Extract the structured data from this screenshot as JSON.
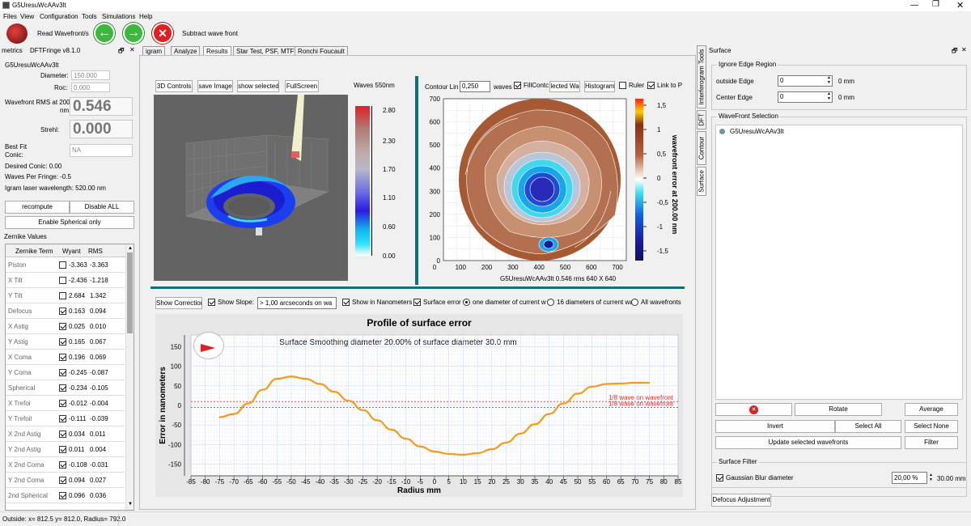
{
  "window": {
    "title": "G5UresuWcAAv3lt"
  },
  "menu": [
    "Files",
    "View",
    "Configuration",
    "Tools",
    "Simulations",
    "Help"
  ],
  "toolbar": {
    "read_label": "Read Wavefront/s",
    "subtract_label": "Subtract wave front"
  },
  "left_panel": {
    "dock_title": "metrics",
    "dock_subtitle": "DFTFringe v8.1.0",
    "file_name": "G5UresuWcAAv3lt",
    "diameter_label": "Diameter:",
    "diameter_value": "150.000",
    "roc_label": "Roc:",
    "roc_value": "0.000",
    "rms_label": "Wavefront RMS at 200.0",
    "rms_unit": "nm",
    "rms_value": "0.546",
    "strehl_label": "Strehl:",
    "strehl_value": "0.000",
    "bestfit_label": "Best Fit",
    "conic_label": "Conic:",
    "conic_value": "NA",
    "desired_conic": "Desired Conic:  0.00",
    "waves_per_fringe": "Waves Per Fringe: -0.5",
    "igram_wavelength": "Igram laser wavelength: 520.00 nm",
    "recompute_label": "recompute",
    "disable_all_label": "Disable ALL",
    "enable_spherical_label": "Enable Spherical only",
    "zernike_title": "Zernike Values",
    "zernike_headers": [
      "Zernike Term",
      "Wyant",
      "RMS"
    ],
    "zernike_rows": [
      {
        "name": "Piston",
        "checked": false,
        "wyant": "-3.363",
        "rms": "-3.363"
      },
      {
        "name": "X Tilt",
        "checked": false,
        "wyant": "-2.436",
        "rms": "-1.218"
      },
      {
        "name": "Y Tilt",
        "checked": false,
        "wyant": "2.684",
        "rms": "1.342"
      },
      {
        "name": "Defocus",
        "checked": true,
        "wyant": "0.163",
        "rms": "0.094"
      },
      {
        "name": "X Astig",
        "checked": true,
        "wyant": "0.025",
        "rms": "0.010"
      },
      {
        "name": "Y Astig",
        "checked": true,
        "wyant": "0.165",
        "rms": "0.067"
      },
      {
        "name": "X Coma",
        "checked": true,
        "wyant": "0.196",
        "rms": "0.069"
      },
      {
        "name": "Y Coma",
        "checked": true,
        "wyant": "-0.245",
        "rms": "-0.087"
      },
      {
        "name": "Spherical",
        "checked": true,
        "wyant": "-0.234",
        "rms": "-0.105"
      },
      {
        "name": "X Trefoi",
        "checked": true,
        "wyant": "-0.012",
        "rms": "-0.004"
      },
      {
        "name": "Y Trefoil",
        "checked": true,
        "wyant": "-0.111",
        "rms": "-0.039"
      },
      {
        "name": "X 2nd Astig",
        "checked": true,
        "wyant": "0.034",
        "rms": "0.011"
      },
      {
        "name": "Y 2nd Astig",
        "checked": true,
        "wyant": "0.011",
        "rms": "0.004"
      },
      {
        "name": "X 2nd Coma",
        "checked": true,
        "wyant": "-0.108",
        "rms": "-0.031"
      },
      {
        "name": "Y 2nd Coma",
        "checked": true,
        "wyant": "0.094",
        "rms": "0.027"
      },
      {
        "name": "2nd Spherical",
        "checked": true,
        "wyant": "0.096",
        "rms": "0.036"
      }
    ]
  },
  "tabs": [
    "igram",
    "Analyze",
    "Results",
    "Star Test, PSF, MTF",
    "Ronchi  Foucault"
  ],
  "view3d": {
    "buttons": [
      "3D Controls",
      "save Image",
      "show selected",
      "FullScreen"
    ],
    "colorbar_title": "Waves 550nm",
    "colorbar_ticks": [
      "2.80",
      "2.30",
      "1.70",
      "1.10",
      "0.60",
      "0.00"
    ]
  },
  "contour": {
    "lines_label": "Contour Lin",
    "lines_value": "0,250",
    "waves_label": "waves",
    "fill_label": "FillContc",
    "selected_label": "lected Wa",
    "histogram_label": "Histogram",
    "ruler_label": "Ruler",
    "link_label": "Link to P",
    "y_ticks": [
      "700",
      "600",
      "500",
      "400",
      "300",
      "200",
      "100",
      "0"
    ],
    "x_ticks": [
      "0",
      "100",
      "200",
      "300",
      "400",
      "500",
      "600",
      "700"
    ],
    "caption": "G5UresuWcAAv3lt  0.546 rms 640 X 640",
    "scale_ticks": [
      "1,5",
      "1",
      "0,5",
      "0",
      "-0,5",
      "-1",
      "-1,5"
    ],
    "scale_title": "wavefront error at 200.00 nm"
  },
  "profile_controls": {
    "show_correction": "Show Correction",
    "show_slope": "Show Slope:",
    "slope_value": "> 1,00 arcseconds on wa",
    "show_nm": "Show in Nanometers",
    "surface_error": "Surface error",
    "one_diameter": "one diameter of current w",
    "sixteen_diameters": "16 diameters of current wa",
    "all_wavefronts": "All wavefronts"
  },
  "chart_data": {
    "type": "line",
    "title": "Profile of surface error",
    "subtitle": "Surface Smoothing diameter  20.00% of surface diameter  30.0 mm",
    "xlabel": "Radius mm",
    "ylabel": "Error in nanometers",
    "xlim": [
      -85,
      85
    ],
    "ylim": [
      -180,
      180
    ],
    "x_ticks": [
      -85,
      -80,
      -75,
      -70,
      -65,
      -60,
      -55,
      -50,
      -45,
      -40,
      -35,
      -30,
      -25,
      -20,
      -15,
      -10,
      -5,
      0,
      5,
      10,
      15,
      20,
      25,
      30,
      35,
      40,
      45,
      50,
      55,
      60,
      65,
      70,
      75,
      80,
      85
    ],
    "y_ticks": [
      150,
      100,
      50,
      0,
      -50,
      -100,
      -150
    ],
    "grid": true,
    "series": [
      {
        "color": "#f59a18",
        "x": [
          -75,
          -70,
          -65,
          -60,
          -55,
          -50,
          -45,
          -40,
          -35,
          -30,
          -25,
          -20,
          -15,
          -10,
          -5,
          0,
          5,
          10,
          15,
          20,
          25,
          30,
          35,
          40,
          45,
          50,
          55,
          60,
          65,
          70,
          75
        ],
        "y": [
          -30,
          -22,
          5,
          40,
          68,
          74,
          68,
          55,
          35,
          12,
          -12,
          -38,
          -62,
          -85,
          -105,
          -118,
          -124,
          -126,
          -122,
          -112,
          -95,
          -72,
          -48,
          -22,
          5,
          30,
          48,
          55,
          56,
          58,
          58
        ]
      }
    ],
    "annotations": [
      "1/8 wave on wavefront",
      "1/8 wave on wavefront"
    ],
    "reference_lines": [
      {
        "y": 10,
        "color": "#e0302f"
      },
      {
        "y": -5,
        "color": "#e0302f"
      }
    ]
  },
  "status_bar": {
    "text": "Outside: x= 812.5 y= 812.0, Radius= 792.0"
  },
  "right_panel": {
    "dock_title": "Surface",
    "vtabs": [
      "Interferogram Tools",
      "DFT",
      "Contour",
      "Surface"
    ],
    "ignore_edge_title": "Ignore Edge Region",
    "outside_edge_label": "outside Edge",
    "outside_edge_value": "0",
    "center_edge_label": "Center Edge",
    "center_edge_value": "0",
    "unit": "0 mm",
    "selection_title": "WaveFront Selection",
    "wavefront_item": "G5UresuWcAAv3lt",
    "rotate": "Rotate",
    "average": "Average",
    "invert": "Invert",
    "select_all": "Select All",
    "select_none": "Select None",
    "update_selected": "Update selected wavefronts",
    "filter": "Filter",
    "surface_filter_title": "Surface Filter",
    "gaussian_label": "Gaussian Blur diameter",
    "gaussian_value": "20,00 %",
    "gaussian_mm": "30.00 mm",
    "defocus_adjust": "Defocus Adjustment"
  },
  "colors": {
    "accent": "#f59a18",
    "contour_brown": "#a0522d",
    "contour_blue": "#2050d0",
    "close_red": "#e02020",
    "nav_green": "#3cb93c"
  }
}
